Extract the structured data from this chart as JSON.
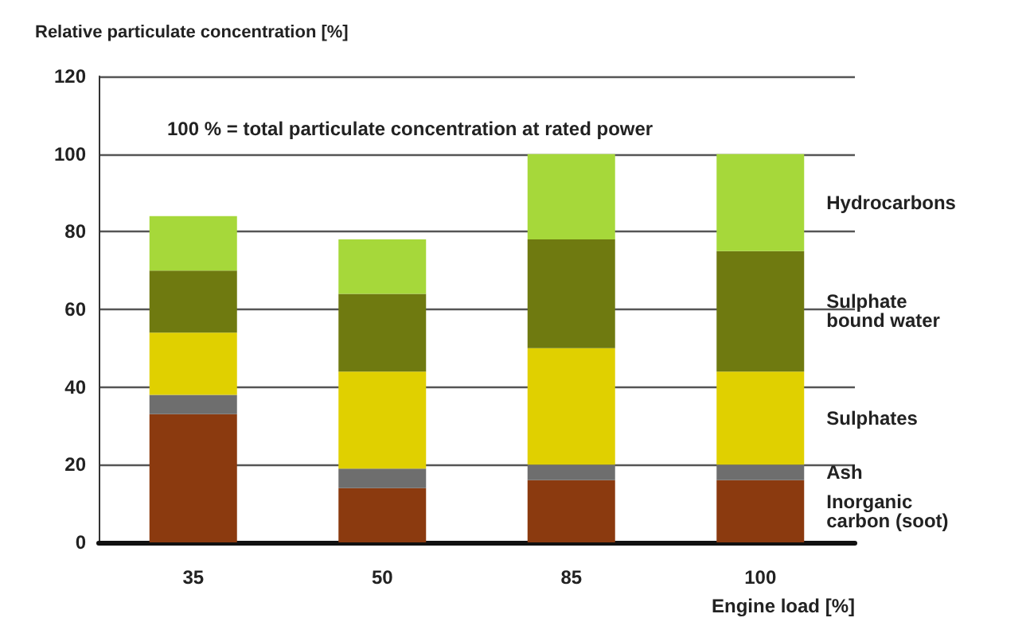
{
  "chart_data": {
    "type": "bar",
    "stacked": true,
    "xlabel": "Engine load [%]",
    "ylabel": "Relative particulate concentration [%]",
    "annotations": [
      "100 % = total particulate concentration at rated power"
    ],
    "categories": [
      "35",
      "50",
      "85",
      "100"
    ],
    "series": [
      {
        "name": "Inorganic\ncarbon (soot)",
        "color": "#8b3a0f",
        "values": [
          33,
          14,
          16,
          16
        ]
      },
      {
        "name": "Ash",
        "color": "#6e6e6e",
        "values": [
          5,
          5,
          4,
          4
        ]
      },
      {
        "name": "Sulphates",
        "color": "#e0d000",
        "values": [
          16,
          25,
          30,
          24
        ]
      },
      {
        "name": "Sulphate\nbound water",
        "color": "#6f7a10",
        "values": [
          16,
          20,
          28,
          31
        ]
      },
      {
        "name": "Hydrocarbons",
        "color": "#a6d83a",
        "values": [
          14,
          14,
          22,
          25
        ]
      }
    ],
    "ylim": [
      0,
      120
    ],
    "yticks": [
      0,
      20,
      40,
      60,
      80,
      100,
      120
    ],
    "grid": "y",
    "legend": false
  }
}
